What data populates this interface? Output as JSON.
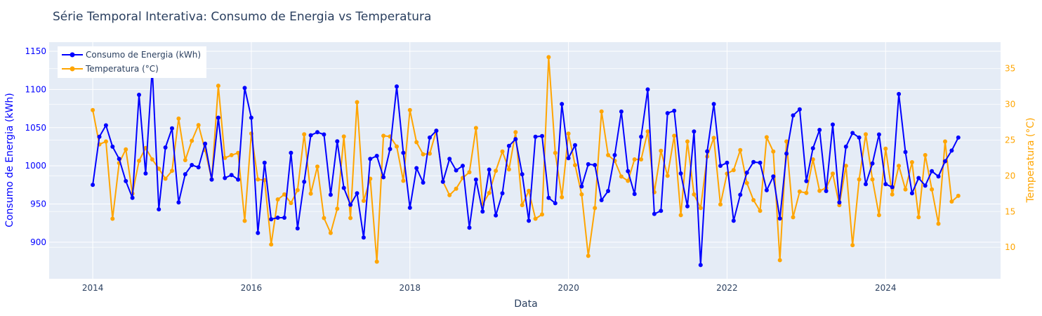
{
  "chart_data": {
    "type": "line",
    "title": "Série Temporal Interativa: Consumo de Energia vs Temperatura",
    "xlabel": "Data",
    "ylabel_left": "Consumo de Energia (kWh)",
    "ylabel_right": "Temperatura (°C)",
    "x_ticks": [
      "2014",
      "2016",
      "2018",
      "2020",
      "2022",
      "2024"
    ],
    "x_range": [
      2013.45,
      2025.45
    ],
    "y_left_ticks": [
      900,
      950,
      1000,
      1050,
      1100,
      1150
    ],
    "y_left_range": [
      852,
      1162
    ],
    "y_right_ticks": [
      10,
      15,
      20,
      25,
      30,
      35
    ],
    "y_right_range": [
      5.6,
      38.7
    ],
    "x_start_year": 2014,
    "grid": true,
    "legend_position": "top-left",
    "series": [
      {
        "name": "Consumo de Energia (kWh)",
        "axis": "left",
        "color": "#0000ff",
        "values": [
          975,
          1038,
          1053,
          1025,
          1009,
          980,
          958,
          1093,
          990,
          1128,
          943,
          1024,
          1049,
          952,
          989,
          1001,
          998,
          1029,
          982,
          1063,
          984,
          988,
          982,
          1102,
          1063,
          912,
          1004,
          930,
          932,
          932,
          1017,
          918,
          979,
          1040,
          1044,
          1041,
          962,
          1032,
          971,
          949,
          964,
          906,
          1009,
          1013,
          985,
          1022,
          1104,
          1017,
          945,
          997,
          978,
          1037,
          1046,
          979,
          1009,
          994,
          1000,
          919,
          982,
          940,
          995,
          935,
          964,
          1026,
          1035,
          989,
          928,
          1038,
          1039,
          958,
          951,
          1081,
          1010,
          1027,
          973,
          1002,
          1001,
          955,
          967,
          1014,
          1071,
          993,
          963,
          1038,
          1100,
          937,
          941,
          1069,
          1072,
          990,
          947,
          1045,
          870,
          1019,
          1081,
          1000,
          1004,
          928,
          962,
          991,
          1005,
          1004,
          968,
          986,
          931,
          1016,
          1066,
          1074,
          980,
          1023,
          1047,
          967,
          1054,
          952,
          1025,
          1043,
          1037,
          976,
          1003,
          1041,
          976,
          972,
          1094,
          1018,
          964,
          984,
          974,
          993,
          986,
          1006,
          1020,
          1037
        ]
      },
      {
        "name": "Temperatura (°C)",
        "axis": "right",
        "color": "#ffa500",
        "values": [
          29.2,
          24.4,
          24.8,
          14.0,
          21.8,
          23.7,
          17.5,
          22.1,
          23.9,
          22.3,
          21.0,
          19.6,
          20.7,
          28.0,
          22.2,
          24.9,
          27.1,
          23.6,
          19.5,
          32.6,
          22.5,
          22.9,
          23.2,
          13.7,
          25.9,
          19.5,
          19.4,
          10.4,
          16.7,
          17.4,
          16.2,
          18.0,
          25.8,
          17.5,
          21.3,
          14.1,
          12.0,
          15.4,
          25.5,
          14.1,
          30.3,
          16.5,
          19.6,
          8.0,
          25.6,
          25.5,
          24.1,
          19.3,
          29.2,
          24.7,
          23.0,
          23.1,
          26.3,
          19.2,
          17.3,
          18.2,
          19.7,
          20.5,
          26.7,
          16.0,
          17.6,
          20.7,
          23.4,
          20.9,
          26.1,
          15.9,
          17.9,
          14.0,
          14.6,
          36.6,
          23.2,
          17.0,
          25.9,
          21.5,
          17.4,
          8.8,
          15.5,
          29.0,
          22.9,
          22.1,
          19.9,
          19.3,
          22.3,
          22.3,
          26.2,
          17.7,
          23.5,
          20.0,
          25.6,
          14.5,
          24.8,
          17.4,
          15.5,
          22.7,
          25.3,
          16.0,
          20.3,
          20.8,
          23.6,
          19.0,
          16.6,
          15.1,
          25.4,
          23.4,
          8.2,
          24.8,
          14.2,
          17.8,
          17.6,
          22.3,
          17.9,
          18.3,
          20.3,
          15.9,
          21.4,
          10.3,
          19.5,
          25.8,
          19.5,
          14.5,
          23.8,
          17.4,
          21.4,
          18.1,
          21.9,
          14.2,
          22.9,
          18.1,
          13.3,
          24.8,
          16.4,
          17.2
        ]
      }
    ]
  }
}
